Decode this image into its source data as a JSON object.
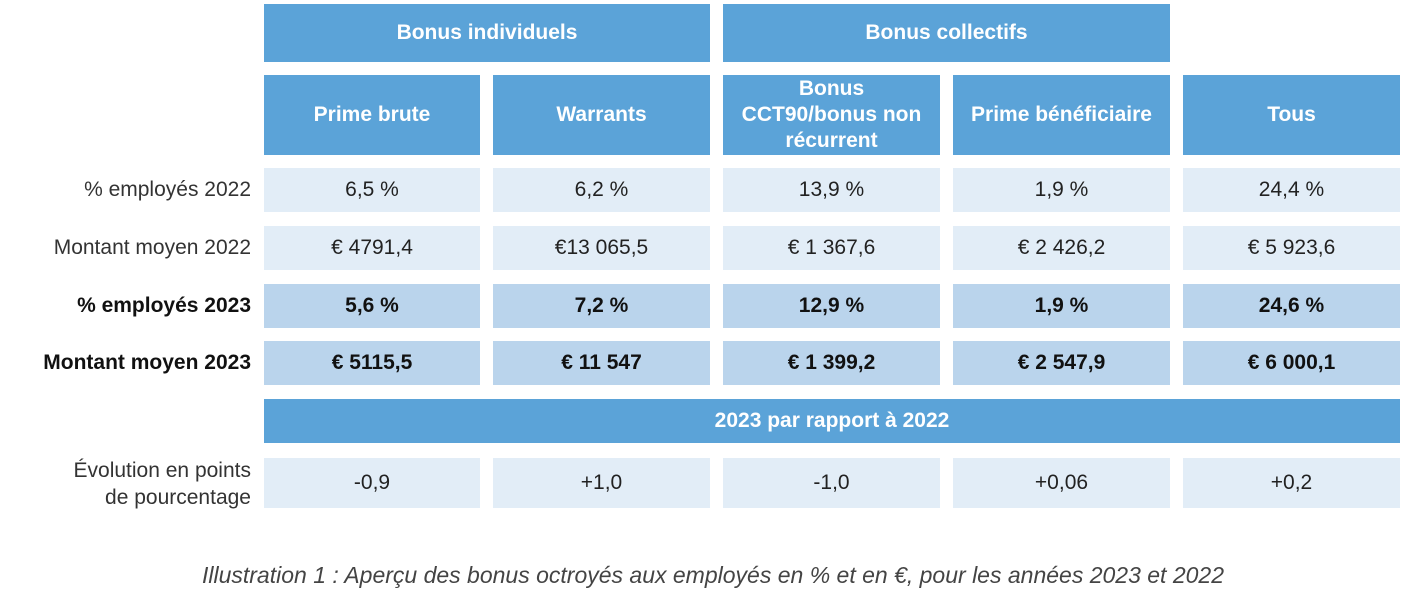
{
  "groups": {
    "individual": "Bonus individuels",
    "collective": "Bonus collectifs"
  },
  "columns": [
    "Prime brute",
    "Warrants",
    "Bonus CCT90/bonus non récurrent",
    "Prime bénéficiaire",
    "Tous"
  ],
  "rows": [
    {
      "label": "% employés 2022",
      "values": [
        "6,5 %",
        "6,2 %",
        "13,9 %",
        "1,9 %",
        "24,4 %"
      ]
    },
    {
      "label": "Montant moyen 2022",
      "values": [
        "€ 4791,4",
        "€13 065,5",
        "€ 1 367,6",
        "€ 2 426,2",
        "€ 5 923,6"
      ]
    },
    {
      "label": "% employés 2023",
      "values": [
        "5,6 %",
        "7,2 %",
        "12,9 %",
        "1,9 %",
        "24,6 %"
      ]
    },
    {
      "label": "Montant moyen 2023",
      "values": [
        "€ 5115,5",
        "€ 11 547",
        "€ 1 399,2",
        "€ 2 547,9",
        "€ 6 000,1"
      ]
    }
  ],
  "comparison_header": "2023 par rapport à 2022",
  "evolution": {
    "label": "Évolution en points de pourcentage",
    "values": [
      "-0,9",
      "+1,0",
      "-1,0",
      "+0,06",
      "+0,2"
    ]
  },
  "caption": "Illustration 1 : Aperçu des bonus octroyés aux employés en % et en €, pour les années 2023 et 2022",
  "colors": {
    "header_blue": "#5ba3d8",
    "light_row": "#e2edf7",
    "bold_row": "#bad4ec"
  }
}
